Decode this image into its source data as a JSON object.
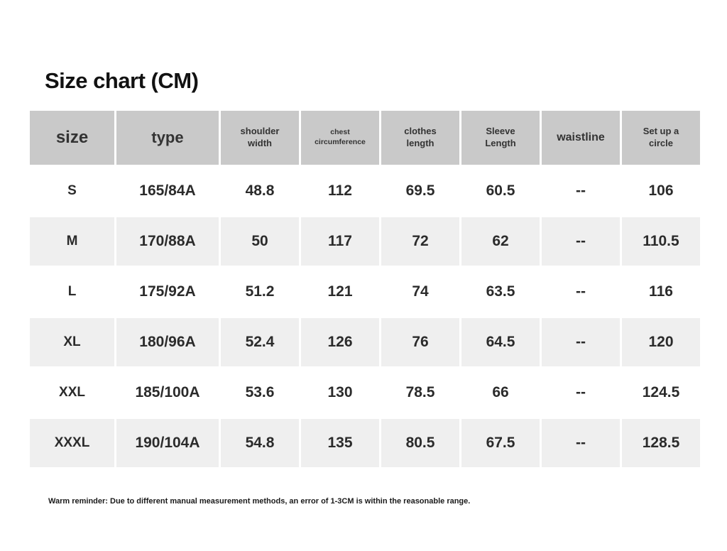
{
  "title": "Size chart (CM)",
  "chart_data": {
    "type": "table",
    "title": "Size chart (CM)",
    "unit": "CM",
    "columns": [
      "size",
      "type",
      "shoulder width",
      "chest circumference",
      "clothes length",
      "Sleeve Length",
      "waistline",
      "Set up a circle"
    ],
    "rows": [
      [
        "S",
        "165/84A",
        "48.8",
        "112",
        "69.5",
        "60.5",
        "--",
        "106"
      ],
      [
        "M",
        "170/88A",
        "50",
        "117",
        "72",
        "62",
        "--",
        "110.5"
      ],
      [
        "L",
        "175/92A",
        "51.2",
        "121",
        "74",
        "63.5",
        "--",
        "116"
      ],
      [
        "XL",
        "180/96A",
        "52.4",
        "126",
        "76",
        "64.5",
        "--",
        "120"
      ],
      [
        "XXL",
        "185/100A",
        "53.6",
        "130",
        "78.5",
        "66",
        "--",
        "124.5"
      ],
      [
        "XXXL",
        "190/104A",
        "54.8",
        "135",
        "80.5",
        "67.5",
        "--",
        "128.5"
      ]
    ]
  },
  "footer": {
    "reminder": "Warm reminder: Due to different manual measurement methods, an error of 1-3CM is within the reasonable range."
  },
  "colors": {
    "header_bg": "#c9c9c9",
    "row_alt_bg": "#efefef",
    "text": "#2b2b2b",
    "background": "#ffffff"
  }
}
